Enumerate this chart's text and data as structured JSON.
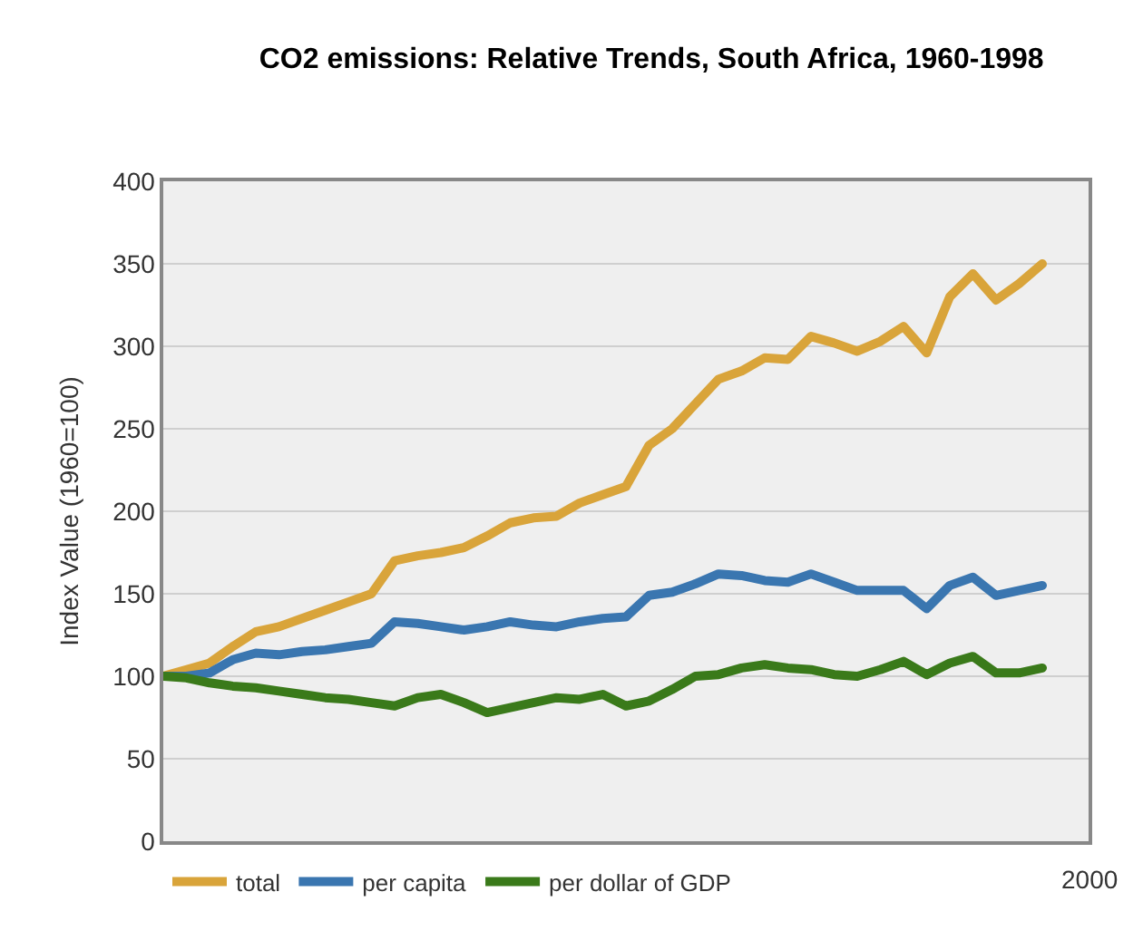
{
  "chart_data": {
    "type": "line",
    "title": "CO2 emissions: Relative Trends, South Africa, 1960-1998",
    "ylabel": "Index Value (1960=100)",
    "categories": [
      null,
      null,
      null,
      null,
      null,
      null,
      null,
      null,
      null,
      null,
      null,
      null,
      null,
      null,
      null,
      null,
      null,
      null,
      null,
      null,
      null,
      null,
      null,
      null,
      null,
      null,
      null,
      null,
      null,
      null,
      null,
      null,
      null,
      null,
      null,
      null,
      null,
      null,
      null
    ],
    "series": [
      {
        "name": "total",
        "color": "#d9a43a",
        "values": [
          100,
          104,
          108,
          118,
          127,
          130,
          135,
          140,
          145,
          150,
          170,
          173,
          175,
          178,
          185,
          193,
          196,
          197,
          205,
          210,
          215,
          240,
          250,
          265,
          280,
          285,
          293,
          292,
          306,
          302,
          297,
          303,
          312,
          296,
          330,
          344,
          328,
          338,
          350
        ]
      },
      {
        "name": "per capita",
        "color": "#3a76b0",
        "values": [
          100,
          100,
          102,
          110,
          114,
          113,
          115,
          116,
          118,
          120,
          133,
          132,
          130,
          128,
          130,
          133,
          131,
          130,
          133,
          135,
          136,
          149,
          151,
          156,
          162,
          161,
          158,
          157,
          162,
          157,
          152,
          152,
          152,
          141,
          155,
          160,
          149,
          152,
          155
        ]
      },
      {
        "name": "per dollar of GDP",
        "color": "#3a7a1a",
        "values": [
          100,
          99,
          96,
          94,
          93,
          91,
          89,
          87,
          86,
          84,
          82,
          87,
          89,
          84,
          78,
          81,
          84,
          87,
          86,
          89,
          82,
          85,
          92,
          100,
          101,
          105,
          107,
          105,
          104,
          101,
          100,
          104,
          109,
          101,
          108,
          112,
          102,
          102,
          105
        ]
      }
    ],
    "annotations": [
      "2000"
    ],
    "ylim": [
      0,
      400
    ],
    "yticks": [
      0,
      50,
      100,
      150,
      200,
      250,
      300,
      350,
      400
    ],
    "grid": "y",
    "legend": "bottom",
    "marker": "none",
    "line_style": "solid"
  }
}
